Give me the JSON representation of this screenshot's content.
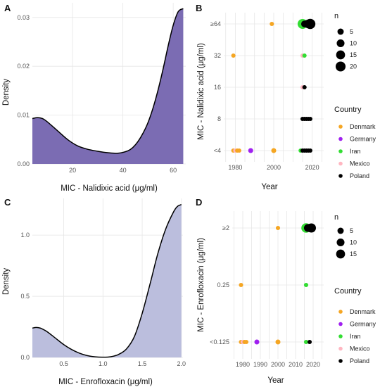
{
  "chart_data": [
    {
      "panel": "A",
      "type": "area",
      "xlabel": "MIC - Nalidixic acid (μg/ml)",
      "ylabel": "Density",
      "xlim": [
        4,
        65
      ],
      "ylim": [
        0,
        0.033
      ],
      "xticks": [
        20,
        40,
        60
      ],
      "yticks": [
        0.0,
        0.01,
        0.02,
        0.03
      ],
      "ytick_labels": [
        "0.00",
        "0.01",
        "0.02",
        "0.03"
      ],
      "fill": "#7b6cb3",
      "x": [
        4,
        6,
        8,
        10,
        14,
        18,
        22,
        26,
        30,
        34,
        38,
        42,
        44,
        46,
        48,
        50,
        52,
        54,
        56,
        58,
        60,
        62,
        64
      ],
      "y": [
        0.0093,
        0.0095,
        0.0093,
        0.0086,
        0.0068,
        0.005,
        0.0037,
        0.003,
        0.0026,
        0.0023,
        0.0022,
        0.0027,
        0.0034,
        0.0046,
        0.0063,
        0.0085,
        0.0115,
        0.0152,
        0.0195,
        0.0242,
        0.0284,
        0.0312,
        0.0318
      ]
    },
    {
      "panel": "B",
      "type": "scatter",
      "xlabel": "Year",
      "ylabel": "MIC - Nalidixic acid (μg/ml)",
      "xlim": [
        1974,
        2026
      ],
      "xticks": [
        1980,
        2000,
        2020
      ],
      "xtick_labels": [
        "1980",
        "2000",
        "2020"
      ],
      "categories": [
        "<4",
        "8",
        "16",
        "32",
        "≥64"
      ],
      "size_legend_title": "n",
      "size_legend": [
        5,
        10,
        15,
        20
      ],
      "color_legend_title": "Country",
      "countries": [
        {
          "name": "Denmark",
          "color": "#f5a623"
        },
        {
          "name": "Germany",
          "color": "#a020f0"
        },
        {
          "name": "Iran",
          "color": "#33dd33"
        },
        {
          "name": "Mexico",
          "color": "#ffb6c1"
        },
        {
          "name": "Poland",
          "color": "#000000"
        }
      ],
      "points": [
        {
          "year": 1979,
          "mic": "32",
          "country": "Denmark",
          "n": 1
        },
        {
          "year": 1999,
          "mic": "≥64",
          "country": "Denmark",
          "n": 1
        },
        {
          "year": 1979,
          "mic": "<4",
          "country": "Denmark",
          "n": 1
        },
        {
          "year": 1980,
          "mic": "<4",
          "country": "Mexico",
          "n": 1
        },
        {
          "year": 1981,
          "mic": "<4",
          "country": "Denmark",
          "n": 1
        },
        {
          "year": 1982,
          "mic": "<4",
          "country": "Denmark",
          "n": 1
        },
        {
          "year": 1988,
          "mic": "<4",
          "country": "Germany",
          "n": 2
        },
        {
          "year": 2000,
          "mic": "<4",
          "country": "Denmark",
          "n": 2
        },
        {
          "year": 2014,
          "mic": "<4",
          "country": "Iran",
          "n": 1
        },
        {
          "year": 2015,
          "mic": "32",
          "country": "Mexico",
          "n": 1
        },
        {
          "year": 2016,
          "mic": "32",
          "country": "Iran",
          "n": 1
        },
        {
          "year": 2015,
          "mic": "16",
          "country": "Mexico",
          "n": 1
        },
        {
          "year": 2016,
          "mic": "16",
          "country": "Poland",
          "n": 1
        },
        {
          "year": 2015,
          "mic": "8",
          "country": "Poland",
          "n": 1
        },
        {
          "year": 2016,
          "mic": "8",
          "country": "Poland",
          "n": 1
        },
        {
          "year": 2017,
          "mic": "8",
          "country": "Poland",
          "n": 1
        },
        {
          "year": 2018,
          "mic": "8",
          "country": "Poland",
          "n": 1
        },
        {
          "year": 2019,
          "mic": "8",
          "country": "Poland",
          "n": 1
        },
        {
          "year": 2015,
          "mic": "<4",
          "country": "Poland",
          "n": 1
        },
        {
          "year": 2016,
          "mic": "<4",
          "country": "Poland",
          "n": 1
        },
        {
          "year": 2017,
          "mic": "<4",
          "country": "Poland",
          "n": 1
        },
        {
          "year": 2018,
          "mic": "<4",
          "country": "Poland",
          "n": 1
        },
        {
          "year": 2019,
          "mic": "<4",
          "country": "Poland",
          "n": 1
        },
        {
          "year": 2015,
          "mic": "≥64",
          "country": "Iran",
          "n": 20
        },
        {
          "year": 2016,
          "mic": "≥64",
          "country": "Poland",
          "n": 6
        },
        {
          "year": 2017,
          "mic": "≥64",
          "country": "Poland",
          "n": 8
        },
        {
          "year": 2018,
          "mic": "≥64",
          "country": "Poland",
          "n": 14
        },
        {
          "year": 2019,
          "mic": "≥64",
          "country": "Poland",
          "n": 22
        }
      ]
    },
    {
      "panel": "C",
      "type": "area",
      "xlabel": "MIC - Enrofloxacin (μg/ml)",
      "ylabel": "Density",
      "xlim": [
        0.1,
        2.02
      ],
      "ylim": [
        0,
        1.3
      ],
      "xticks": [
        0.5,
        1.0,
        1.5,
        2.0
      ],
      "xtick_labels": [
        "0.5",
        "1.0",
        "1.5",
        "2.0"
      ],
      "yticks": [
        0.0,
        0.5,
        1.0
      ],
      "ytick_labels": [
        "0.0",
        "0.5",
        "1.0"
      ],
      "fill": "#bbbedd",
      "x": [
        0.1,
        0.15,
        0.2,
        0.25,
        0.3,
        0.4,
        0.5,
        0.6,
        0.7,
        0.8,
        0.9,
        1.0,
        1.1,
        1.2,
        1.3,
        1.4,
        1.5,
        1.6,
        1.7,
        1.8,
        1.9,
        1.95,
        2.0
      ],
      "y": [
        0.24,
        0.245,
        0.24,
        0.225,
        0.205,
        0.155,
        0.105,
        0.065,
        0.035,
        0.015,
        0.005,
        0.002,
        0.006,
        0.025,
        0.07,
        0.17,
        0.36,
        0.6,
        0.85,
        1.05,
        1.19,
        1.235,
        1.25
      ]
    },
    {
      "panel": "D",
      "type": "scatter",
      "xlabel": "Year",
      "ylabel": "MIC - Enrofloxacin (μg/ml)",
      "xlim": [
        1974,
        2026
      ],
      "xticks": [
        1980,
        1990,
        2000,
        2010,
        2020
      ],
      "xtick_labels": [
        "1980",
        "1990",
        "2000",
        "2010",
        "2020"
      ],
      "categories": [
        "<0.125",
        "0.25",
        "≥2"
      ],
      "size_legend_title": "n",
      "size_legend": [
        5,
        10,
        15
      ],
      "color_legend_title": "Country",
      "countries": [
        {
          "name": "Denmark",
          "color": "#f5a623"
        },
        {
          "name": "Germany",
          "color": "#a020f0"
        },
        {
          "name": "Iran",
          "color": "#33dd33"
        },
        {
          "name": "Mexico",
          "color": "#ffb6c1"
        },
        {
          "name": "Poland",
          "color": "#000000"
        }
      ],
      "points": [
        {
          "year": 1979,
          "mic": "0.25",
          "country": "Denmark",
          "n": 1
        },
        {
          "year": 2000,
          "mic": "≥2",
          "country": "Denmark",
          "n": 1
        },
        {
          "year": 1979,
          "mic": "<0.125",
          "country": "Denmark",
          "n": 1
        },
        {
          "year": 1980,
          "mic": "<0.125",
          "country": "Mexico",
          "n": 1
        },
        {
          "year": 1981,
          "mic": "<0.125",
          "country": "Denmark",
          "n": 1
        },
        {
          "year": 1982,
          "mic": "<0.125",
          "country": "Denmark",
          "n": 1
        },
        {
          "year": 1988,
          "mic": "<0.125",
          "country": "Germany",
          "n": 2
        },
        {
          "year": 2000,
          "mic": "<0.125",
          "country": "Denmark",
          "n": 2
        },
        {
          "year": 2016,
          "mic": "0.25",
          "country": "Iran",
          "n": 1
        },
        {
          "year": 2016,
          "mic": "<0.125",
          "country": "Iran",
          "n": 1
        },
        {
          "year": 2018,
          "mic": "<0.125",
          "country": "Poland",
          "n": 1
        },
        {
          "year": 2016,
          "mic": "≥2",
          "country": "Iran",
          "n": 18
        },
        {
          "year": 2017,
          "mic": "≥2",
          "country": "Poland",
          "n": 10
        },
        {
          "year": 2018,
          "mic": "≥2",
          "country": "Poland",
          "n": 12
        },
        {
          "year": 2019,
          "mic": "≥2",
          "country": "Poland",
          "n": 16
        }
      ]
    }
  ]
}
